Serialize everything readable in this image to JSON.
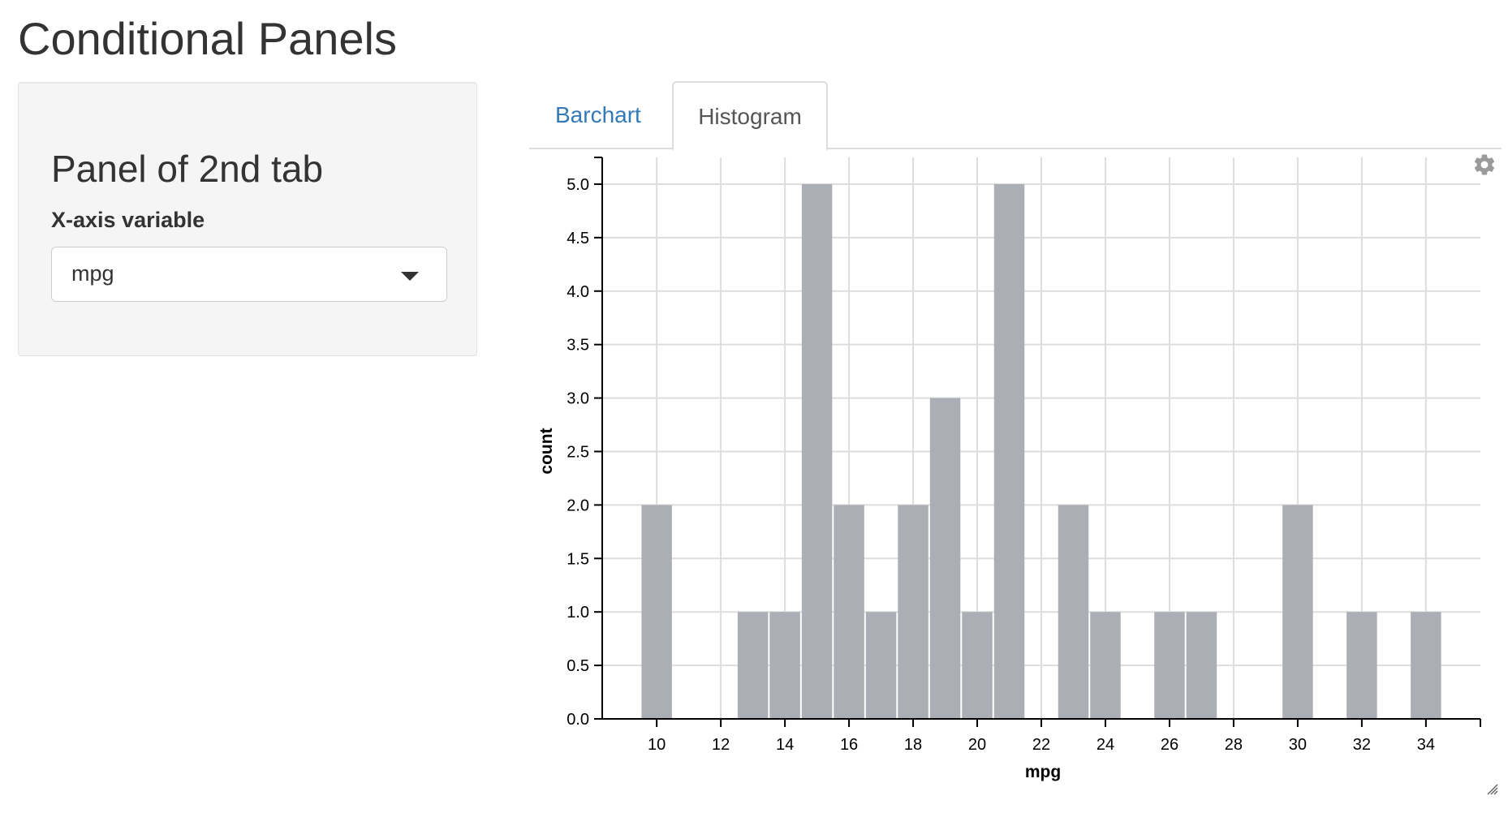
{
  "page": {
    "title": "Conditional Panels"
  },
  "sidebar": {
    "heading": "Panel of 2nd tab",
    "x_axis_label": "X-axis variable",
    "x_axis_selected": "mpg"
  },
  "tabs": [
    {
      "label": "Barchart",
      "active": false
    },
    {
      "label": "Histogram",
      "active": true
    }
  ],
  "icons": {
    "settings": "gear-icon",
    "resize": "resize-handle-icon",
    "dropdown": "caret-down-icon"
  },
  "colors": {
    "bar_fill": "#abaeb4",
    "link": "#337ab7",
    "panel_bg": "#f5f5f5"
  },
  "chart_data": {
    "type": "bar",
    "xlabel": "mpg",
    "ylabel": "count",
    "xlim": [
      8.3,
      35.7
    ],
    "ylim": [
      0,
      5.25
    ],
    "x_ticks": [
      10,
      12,
      14,
      16,
      18,
      20,
      22,
      24,
      26,
      28,
      30,
      32,
      34
    ],
    "y_ticks": [
      "0.0",
      "0.5",
      "1.0",
      "1.5",
      "2.0",
      "2.5",
      "3.0",
      "3.5",
      "4.0",
      "4.5",
      "5.0"
    ],
    "grid": true,
    "bin_width": 1,
    "bins": [
      {
        "x": 10,
        "count": 2
      },
      {
        "x": 13,
        "count": 1
      },
      {
        "x": 14,
        "count": 1
      },
      {
        "x": 15,
        "count": 5
      },
      {
        "x": 16,
        "count": 2
      },
      {
        "x": 17,
        "count": 1
      },
      {
        "x": 18,
        "count": 2
      },
      {
        "x": 19,
        "count": 3
      },
      {
        "x": 20,
        "count": 1
      },
      {
        "x": 21,
        "count": 5
      },
      {
        "x": 23,
        "count": 2
      },
      {
        "x": 24,
        "count": 1
      },
      {
        "x": 26,
        "count": 1
      },
      {
        "x": 27,
        "count": 1
      },
      {
        "x": 30,
        "count": 2
      },
      {
        "x": 32,
        "count": 1
      },
      {
        "x": 34,
        "count": 1
      }
    ]
  }
}
